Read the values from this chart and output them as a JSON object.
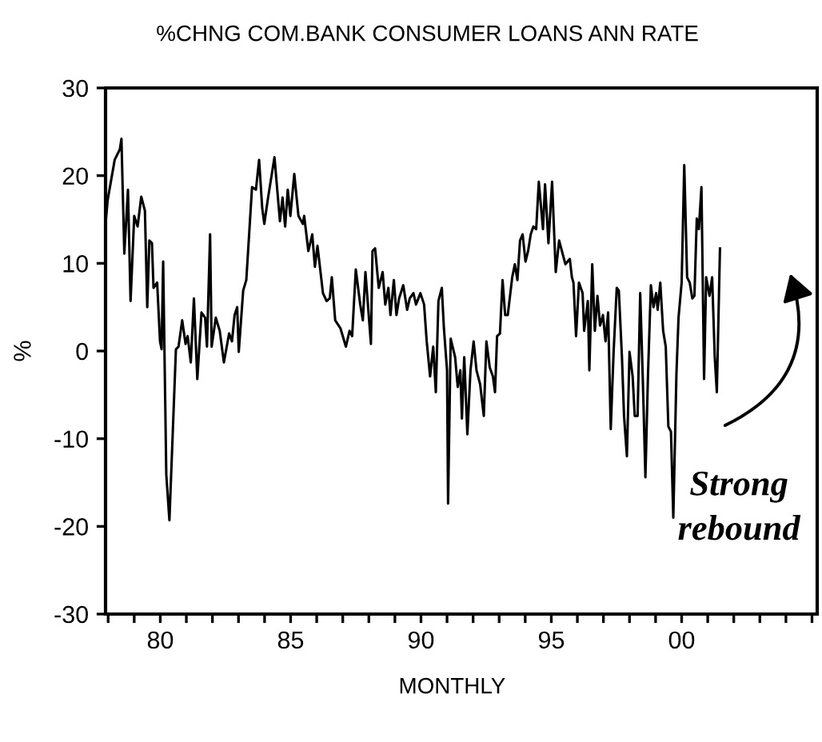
{
  "chart_data": {
    "type": "line",
    "title": "%CHNG COM.BANK CONSUMER LOANS ANN RATE",
    "xlabel": "MONTHLY",
    "ylabel": "%",
    "annotations": [
      "Strong\nrebound"
    ],
    "xlim": [
      1977.9,
      2005.2
    ],
    "ylim": [
      -30,
      30
    ],
    "yticks": [
      -30,
      -20,
      -10,
      0,
      10,
      20,
      30
    ],
    "xticks": [
      {
        "value": 1978,
        "label": null
      },
      {
        "value": 1979,
        "label": null
      },
      {
        "value": 1980,
        "label": "80"
      },
      {
        "value": 1981,
        "label": null
      },
      {
        "value": 1982,
        "label": null
      },
      {
        "value": 1983,
        "label": null
      },
      {
        "value": 1984,
        "label": null
      },
      {
        "value": 1985,
        "label": "85"
      },
      {
        "value": 1986,
        "label": null
      },
      {
        "value": 1987,
        "label": null
      },
      {
        "value": 1988,
        "label": null
      },
      {
        "value": 1989,
        "label": null
      },
      {
        "value": 1990,
        "label": "90"
      },
      {
        "value": 1991,
        "label": null
      },
      {
        "value": 1992,
        "label": null
      },
      {
        "value": 1993,
        "label": null
      },
      {
        "value": 1994,
        "label": null
      },
      {
        "value": 1995,
        "label": "95"
      },
      {
        "value": 1996,
        "label": null
      },
      {
        "value": 1997,
        "label": null
      },
      {
        "value": 1998,
        "label": null
      },
      {
        "value": 1999,
        "label": null
      },
      {
        "value": 2000,
        "label": "00"
      },
      {
        "value": 2001,
        "label": null
      },
      {
        "value": 2002,
        "label": null
      },
      {
        "value": 2003,
        "label": null
      },
      {
        "value": 2004,
        "label": null
      },
      {
        "value": 2005,
        "label": null
      }
    ],
    "grid": false,
    "marker": "none",
    "line_style": "solid",
    "series": [
      {
        "color": "#000000",
        "x": [
          1977.9,
          1977.98,
          1978.25,
          1978.45,
          1978.51,
          1978.62,
          1978.76,
          1978.86,
          1979.0,
          1979.13,
          1979.27,
          1979.41,
          1979.5,
          1979.58,
          1979.68,
          1979.74,
          1979.88,
          1979.99,
          1980.05,
          1980.11,
          1980.23,
          1980.35,
          1980.6,
          1980.7,
          1980.84,
          1980.97,
          1981.05,
          1981.17,
          1981.29,
          1981.42,
          1981.58,
          1981.72,
          1981.79,
          1981.91,
          1981.97,
          1982.13,
          1982.28,
          1982.44,
          1982.64,
          1982.75,
          1982.85,
          1982.95,
          1983.01,
          1983.18,
          1983.3,
          1983.52,
          1983.67,
          1983.79,
          1983.91,
          1983.99,
          1984.12,
          1984.38,
          1984.59,
          1984.69,
          1984.79,
          1984.89,
          1984.99,
          1985.14,
          1985.3,
          1985.47,
          1985.52,
          1985.68,
          1985.83,
          1985.93,
          1986.03,
          1986.24,
          1986.38,
          1986.5,
          1986.58,
          1986.71,
          1986.91,
          1987.12,
          1987.26,
          1987.36,
          1987.5,
          1987.67,
          1987.77,
          1987.87,
          1988.08,
          1988.14,
          1988.24,
          1988.38,
          1988.53,
          1988.63,
          1988.75,
          1988.83,
          1988.96,
          1989.06,
          1989.16,
          1989.32,
          1989.47,
          1989.57,
          1989.71,
          1989.81,
          1989.98,
          1990.12,
          1990.22,
          1990.35,
          1990.47,
          1990.57,
          1990.67,
          1990.8,
          1990.88,
          1991.0,
          1991.04,
          1991.14,
          1991.31,
          1991.41,
          1991.51,
          1991.57,
          1991.66,
          1991.78,
          1991.9,
          1992.02,
          1992.13,
          1992.27,
          1992.41,
          1992.51,
          1992.64,
          1992.76,
          1992.84,
          1992.92,
          1993.03,
          1993.13,
          1993.23,
          1993.33,
          1993.5,
          1993.6,
          1993.7,
          1993.8,
          1993.9,
          1994.01,
          1994.11,
          1994.21,
          1994.31,
          1994.42,
          1994.52,
          1994.68,
          1994.76,
          1994.89,
          1995.03,
          1995.17,
          1995.3,
          1995.54,
          1995.71,
          1995.79,
          1995.85,
          1995.95,
          1996.06,
          1996.2,
          1996.26,
          1996.4,
          1996.46,
          1996.57,
          1996.67,
          1996.77,
          1996.87,
          1996.98,
          1997.08,
          1997.18,
          1997.28,
          1997.39,
          1997.51,
          1997.59,
          1997.71,
          1997.79,
          1997.9,
          1998.0,
          1998.12,
          1998.2,
          1998.31,
          1998.41,
          1998.51,
          1998.61,
          1998.71,
          1998.82,
          1998.92,
          1999.02,
          1999.08,
          1999.18,
          1999.29,
          1999.39,
          1999.49,
          1999.59,
          1999.68,
          1999.8,
          1999.88,
          2000.0,
          2000.1,
          2000.21,
          2000.31,
          2000.41,
          2000.49,
          2000.58,
          2000.66,
          2000.76,
          2000.86,
          2000.94,
          2001.07,
          2001.17,
          2001.27,
          2001.35,
          2001.47
        ],
        "values": [
          14.5,
          17.2,
          21.8,
          23.0,
          24.2,
          11.1,
          18.4,
          5.7,
          15.4,
          14.2,
          17.6,
          16.0,
          5.0,
          12.6,
          12.3,
          7.2,
          7.8,
          1.1,
          0.2,
          10.2,
          -14.1,
          -19.3,
          0.2,
          0.5,
          3.5,
          0.8,
          1.7,
          -1.3,
          6.0,
          -3.2,
          4.4,
          3.8,
          0.5,
          13.3,
          0.5,
          3.8,
          2.3,
          -1.3,
          2.0,
          1.1,
          4.1,
          5.0,
          -0.1,
          6.9,
          8.1,
          18.7,
          18.4,
          21.8,
          16.3,
          14.5,
          17.2,
          22.1,
          14.8,
          17.5,
          14.2,
          18.4,
          15.4,
          20.2,
          15.4,
          14.5,
          15.4,
          11.4,
          13.3,
          9.6,
          12.0,
          6.6,
          5.7,
          6.0,
          8.4,
          3.5,
          2.6,
          0.5,
          2.3,
          1.7,
          9.3,
          5.3,
          3.5,
          9.0,
          0.8,
          11.4,
          11.7,
          7.2,
          9.0,
          5.3,
          7.2,
          4.1,
          8.1,
          4.1,
          6.0,
          7.5,
          4.7,
          6.0,
          6.6,
          5.3,
          6.6,
          5.3,
          1.1,
          -2.9,
          0.5,
          -4.7,
          5.7,
          7.2,
          2.6,
          -2.2,
          -17.4,
          1.4,
          -0.7,
          -4.1,
          -2.2,
          -7.7,
          -0.7,
          -9.5,
          -2.2,
          1.1,
          -2.2,
          -3.8,
          -7.4,
          1.1,
          -1.9,
          -2.9,
          -4.7,
          1.7,
          2.0,
          8.1,
          4.1,
          4.1,
          8.4,
          9.9,
          8.1,
          12.6,
          13.3,
          10.2,
          11.4,
          13.3,
          14.2,
          13.9,
          19.3,
          13.9,
          19.0,
          12.3,
          19.3,
          9.0,
          12.6,
          9.9,
          10.5,
          8.4,
          7.8,
          1.7,
          7.8,
          6.6,
          2.3,
          5.7,
          -2.2,
          9.9,
          2.3,
          6.3,
          2.9,
          4.1,
          1.1,
          4.4,
          -8.9,
          -0.1,
          7.2,
          6.9,
          -0.7,
          -7.4,
          -12.0,
          -0.1,
          -2.9,
          -7.4,
          -7.4,
          6.6,
          -3.2,
          -14.4,
          -2.6,
          7.5,
          5.0,
          6.6,
          4.7,
          7.8,
          2.3,
          0.5,
          -8.6,
          -9.2,
          -19.0,
          -2.6,
          3.8,
          7.8,
          21.2,
          8.4,
          7.8,
          6.0,
          6.3,
          15.1,
          13.9,
          18.7,
          -3.2,
          8.4,
          6.3,
          8.4,
          -0.7,
          -4.7,
          11.7
        ]
      }
    ]
  }
}
